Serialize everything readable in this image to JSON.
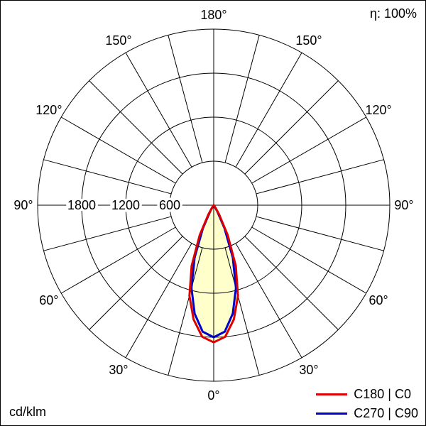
{
  "eta_label": "η: 100%",
  "unit_label": "cd/klm",
  "legend": [
    {
      "label": "C180 | C0",
      "color": "#dd0000"
    },
    {
      "label": "C270 | C90",
      "color": "#0000cc"
    }
  ],
  "chart_data": {
    "type": "polar",
    "subtype": "luminous-intensity-distribution",
    "unit": "cd/klm",
    "center": {
      "x": 300,
      "y": 288
    },
    "outer_radius_px": 248,
    "rlim": [
      0,
      2400
    ],
    "rings": [
      600,
      1200,
      1800,
      2400
    ],
    "ring_labels": [
      "600",
      "1200",
      "1800"
    ],
    "spoke_step_deg": 15,
    "angle_labels": [
      "0°",
      "30°",
      "60°",
      "90°",
      "120°",
      "150°",
      "180°"
    ],
    "angle_label_radius_px": 268,
    "gamma_step_deg": 5,
    "grid_color": "#000000",
    "series": [
      {
        "name": "C180 | C0",
        "color": "#dd0000",
        "fill": "#ffffcc",
        "values": [
          1870,
          1800,
          1580,
          1280,
          880,
          450,
          150,
          40,
          5,
          0,
          0,
          0,
          0,
          0,
          0,
          0,
          0,
          0,
          0
        ]
      },
      {
        "name": "C270 | C90",
        "color": "#0000cc",
        "fill": "none",
        "values": [
          1800,
          1730,
          1500,
          1170,
          760,
          350,
          95,
          15,
          0,
          0,
          0,
          0,
          0,
          0,
          0,
          0,
          0,
          0,
          0
        ]
      }
    ]
  }
}
